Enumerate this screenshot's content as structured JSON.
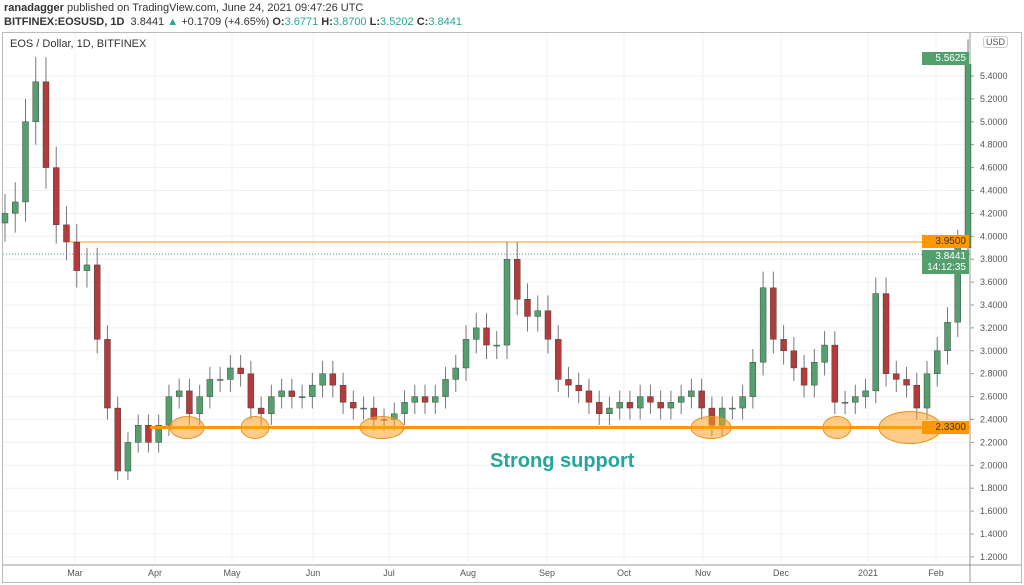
{
  "header": {
    "author": "ranadagger",
    "published": "published on TradingView.com, June 24, 2021 09:47:26 UTC",
    "symbol": "BITFINEX:EOSUSD, 1D",
    "last": "3.8441",
    "change": "+0.1709 (+4.65%)",
    "o_label": "O:",
    "o": "3.6771",
    "h_label": "H:",
    "h": "3.8700",
    "l_label": "L:",
    "l": "3.5202",
    "c_label": "C:",
    "c": "3.8441"
  },
  "chart_title": "EOS / Dollar, 1D, BITFINEX",
  "annotation": "Strong support",
  "chart_data": {
    "type": "candlestick",
    "currency": "USD",
    "x_ticks": [
      "Mar",
      "Apr",
      "May",
      "Jun",
      "Jul",
      "Aug",
      "Sep",
      "Oct",
      "Nov",
      "Dec",
      "2021",
      "Feb"
    ],
    "y_ticks": [
      "5.4000",
      "5.2000",
      "5.0000",
      "4.8000",
      "4.6000",
      "4.4000",
      "4.2000",
      "4.0000",
      "3.8000",
      "3.6000",
      "3.4000",
      "3.2000",
      "3.0000",
      "2.8000",
      "2.6000",
      "2.4000",
      "2.2000",
      "2.0000",
      "1.8000",
      "1.6000",
      "1.4000",
      "1.2000"
    ],
    "ylim": [
      1.2,
      5.6
    ],
    "closes": [
      4.2,
      4.3,
      5.0,
      5.35,
      4.6,
      4.1,
      3.95,
      3.7,
      3.75,
      3.1,
      2.5,
      1.95,
      2.2,
      2.35,
      2.2,
      2.35,
      2.6,
      2.65,
      2.45,
      2.6,
      2.75,
      2.75,
      2.85,
      2.8,
      2.5,
      2.45,
      2.6,
      2.65,
      2.6,
      2.6,
      2.7,
      2.8,
      2.7,
      2.55,
      2.5,
      2.5,
      2.4,
      2.4,
      2.45,
      2.55,
      2.6,
      2.55,
      2.6,
      2.75,
      2.85,
      3.1,
      3.2,
      3.05,
      3.05,
      3.8,
      3.45,
      3.3,
      3.35,
      3.1,
      2.75,
      2.7,
      2.65,
      2.55,
      2.45,
      2.5,
      2.55,
      2.5,
      2.6,
      2.55,
      2.5,
      2.55,
      2.6,
      2.65,
      2.5,
      2.35,
      2.5,
      2.5,
      2.6,
      2.9,
      3.55,
      3.1,
      3.0,
      2.85,
      2.7,
      2.9,
      3.05,
      2.55,
      2.55,
      2.6,
      2.65,
      3.5,
      2.8,
      2.75,
      2.7,
      2.5,
      2.8,
      3.0,
      3.25,
      3.9,
      5.5
    ],
    "resistance": {
      "value": 3.95,
      "label": "3.9500"
    },
    "support": {
      "value": 2.33,
      "label": "2.3300"
    },
    "high_label": "5.5625",
    "current_label": "3.8441",
    "countdown": "14:12:35",
    "colors": {
      "up": "#53a06e",
      "down": "#b23b3b",
      "level": "#ff9800",
      "annotation": "#26a69a"
    }
  }
}
